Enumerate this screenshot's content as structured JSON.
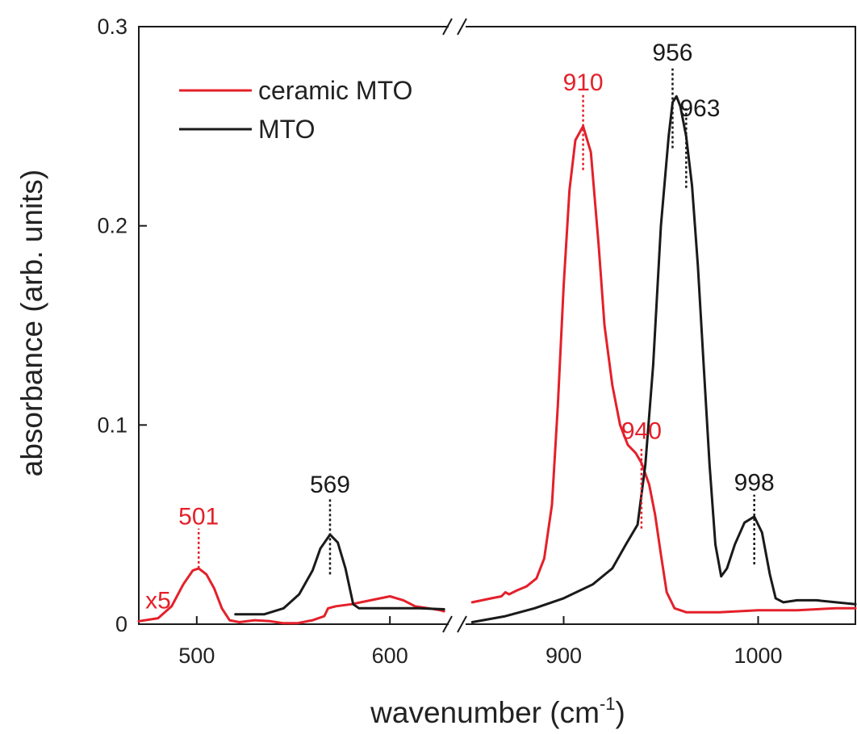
{
  "chart_data": {
    "type": "line",
    "title": "",
    "xlabel": "wavenumber (cm",
    "xlabel_sup": "-1",
    "xlabel_end": ")",
    "ylabel": "absorbance (arb. units)",
    "ylim": [
      0,
      0.3
    ],
    "y_ticks": [
      0,
      0.1,
      0.2,
      0.3
    ],
    "y_tick_labels": [
      "0",
      "0.1",
      "0.2",
      "0.3"
    ],
    "x_broken_axis": true,
    "x_segments": [
      {
        "range": [
          470,
          630
        ],
        "ticks": [
          500,
          600
        ],
        "tick_labels": [
          "500",
          "600"
        ]
      },
      {
        "range": [
          850,
          1050
        ],
        "ticks": [
          900,
          1000
        ],
        "tick_labels": [
          "900",
          "1000"
        ]
      }
    ],
    "grid": false,
    "legend_position": "top-left",
    "colors": {
      "ceramic": "#e4202a",
      "mto": "#1a1a1a"
    },
    "series": [
      {
        "name": "ceramic MTO",
        "color": "#e4202a",
        "segments": [
          [
            [
              470,
              0.0015
            ],
            [
              480,
              0.003
            ],
            [
              487,
              0.009
            ],
            [
              493,
              0.02
            ],
            [
              498,
              0.027
            ],
            [
              501,
              0.028
            ],
            [
              505,
              0.025
            ],
            [
              509,
              0.018
            ],
            [
              513,
              0.008
            ],
            [
              517,
              0.002
            ],
            [
              522,
              0.001
            ],
            [
              530,
              0.002
            ],
            [
              538,
              0.0015
            ],
            [
              545,
              0.0005
            ],
            [
              552,
              0.0005
            ],
            [
              560,
              0.002
            ],
            [
              566,
              0.004
            ],
            [
              568,
              0.008
            ],
            [
              572,
              0.009
            ],
            [
              580,
              0.01
            ],
            [
              590,
              0.012
            ],
            [
              600,
              0.014
            ],
            [
              607,
              0.012
            ],
            [
              613,
              0.009
            ],
            [
              620,
              0.008
            ],
            [
              626,
              0.007
            ],
            [
              628,
              0.0065
            ]
          ],
          [
            [
              853,
              0.011
            ],
            [
              858,
              0.012
            ],
            [
              863,
              0.013
            ],
            [
              868,
              0.014
            ],
            [
              870,
              0.016
            ],
            [
              872,
              0.015
            ],
            [
              876,
              0.017
            ],
            [
              881,
              0.019
            ],
            [
              886,
              0.023
            ],
            [
              890,
              0.033
            ],
            [
              894,
              0.06
            ],
            [
              897,
              0.11
            ],
            [
              900,
              0.17
            ],
            [
              903,
              0.218
            ],
            [
              906,
              0.243
            ],
            [
              910,
              0.25
            ],
            [
              914,
              0.237
            ],
            [
              918,
              0.19
            ],
            [
              921,
              0.15
            ],
            [
              925,
              0.12
            ],
            [
              929,
              0.1
            ],
            [
              933,
              0.09
            ],
            [
              937,
              0.086
            ],
            [
              940,
              0.081
            ],
            [
              944,
              0.07
            ],
            [
              947,
              0.055
            ],
            [
              950,
              0.035
            ],
            [
              953,
              0.016
            ],
            [
              957,
              0.008
            ],
            [
              963,
              0.006
            ],
            [
              980,
              0.006
            ],
            [
              1000,
              0.007
            ],
            [
              1020,
              0.007
            ],
            [
              1040,
              0.008
            ],
            [
              1050,
              0.008
            ]
          ]
        ]
      },
      {
        "name": "MTO",
        "color": "#1a1a1a",
        "segments": [
          [
            [
              520,
              0.005
            ],
            [
              535,
              0.005
            ],
            [
              545,
              0.008
            ],
            [
              553,
              0.015
            ],
            [
              560,
              0.027
            ],
            [
              564,
              0.038
            ],
            [
              569,
              0.045
            ],
            [
              573,
              0.041
            ],
            [
              577,
              0.028
            ],
            [
              581,
              0.01
            ],
            [
              584,
              0.008
            ],
            [
              600,
              0.008
            ],
            [
              615,
              0.008
            ],
            [
              628,
              0.0075
            ]
          ],
          [
            [
              853,
              0.001
            ],
            [
              870,
              0.004
            ],
            [
              885,
              0.008
            ],
            [
              900,
              0.013
            ],
            [
              915,
              0.02
            ],
            [
              925,
              0.028
            ],
            [
              932,
              0.04
            ],
            [
              938,
              0.05
            ],
            [
              942,
              0.08
            ],
            [
              946,
              0.13
            ],
            [
              950,
              0.2
            ],
            [
              954,
              0.245
            ],
            [
              956,
              0.262
            ],
            [
              958,
              0.265
            ],
            [
              960,
              0.26
            ],
            [
              963,
              0.245
            ],
            [
              966,
              0.22
            ],
            [
              969,
              0.18
            ],
            [
              972,
              0.13
            ],
            [
              975,
              0.08
            ],
            [
              978,
              0.04
            ],
            [
              981,
              0.024
            ],
            [
              984,
              0.028
            ],
            [
              988,
              0.04
            ],
            [
              993,
              0.051
            ],
            [
              998,
              0.054
            ],
            [
              1002,
              0.046
            ],
            [
              1006,
              0.025
            ],
            [
              1009,
              0.013
            ],
            [
              1013,
              0.011
            ],
            [
              1020,
              0.012
            ],
            [
              1030,
              0.012
            ],
            [
              1040,
              0.011
            ],
            [
              1050,
              0.01
            ]
          ]
        ]
      }
    ],
    "annotations": [
      {
        "text": "x5",
        "color": "#e4202a",
        "x": 480,
        "y": 0.008,
        "anchor": "middle"
      },
      {
        "text": "501",
        "color": "#e4202a",
        "x": 501,
        "y": 0.05,
        "anchor": "middle",
        "line": [
          0.028,
          0.048
        ]
      },
      {
        "text": "569",
        "color": "#1a1a1a",
        "x": 569,
        "y": 0.066,
        "anchor": "middle",
        "line": [
          0.025,
          0.063
        ]
      },
      {
        "text": "910",
        "color": "#e4202a",
        "x": 910,
        "y": 0.268,
        "anchor": "middle",
        "line": [
          0.228,
          0.266
        ]
      },
      {
        "text": "940",
        "color": "#e4202a",
        "x": 940,
        "y": 0.093,
        "anchor": "middle",
        "line": [
          0.048,
          0.088
        ]
      },
      {
        "text": "956",
        "color": "#1a1a1a",
        "x": 956,
        "y": 0.283,
        "anchor": "middle",
        "line": [
          0.239,
          0.279
        ]
      },
      {
        "text": "963",
        "color": "#1a1a1a",
        "x": 963,
        "y": 0.255,
        "anchor": "start",
        "line": [
          0.219,
          0.259
        ]
      },
      {
        "text": "998",
        "color": "#1a1a1a",
        "x": 998,
        "y": 0.067,
        "anchor": "middle",
        "line": [
          0.03,
          0.065
        ]
      }
    ]
  }
}
